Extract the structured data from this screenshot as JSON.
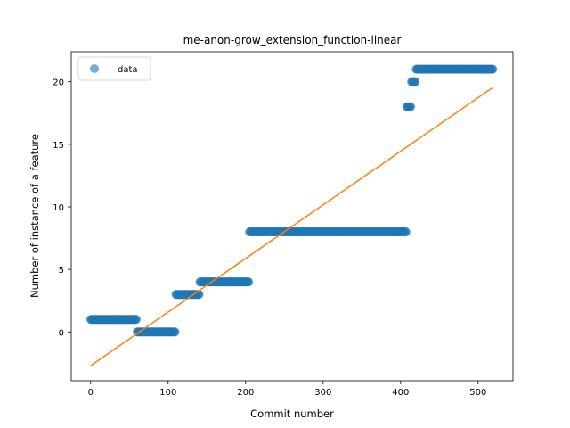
{
  "chart_data": {
    "type": "scatter",
    "title": "me-anon-grow_extension_function-linear",
    "xlabel": "Commit number",
    "ylabel": "Number of instance of a feature",
    "xlim": [
      -25,
      545
    ],
    "ylim": [
      -3.9,
      22.4
    ],
    "xticks": [
      0,
      100,
      200,
      300,
      400,
      500
    ],
    "yticks": [
      0,
      5,
      10,
      15,
      20
    ],
    "legend": {
      "position": "top-left",
      "entries": [
        "data"
      ]
    },
    "grid": false,
    "colors": {
      "data": "#1f77b4",
      "fit": "#ff7f0e"
    },
    "segments": [
      {
        "x_start": 0,
        "x_end": 60,
        "y": 1
      },
      {
        "x_start": 60,
        "x_end": 110,
        "y": 0
      },
      {
        "x_start": 110,
        "x_end": 141,
        "y": 3
      },
      {
        "x_start": 141,
        "x_end": 205,
        "y": 4
      },
      {
        "x_start": 205,
        "x_end": 408,
        "y": 8
      },
      {
        "x_start": 408,
        "x_end": 414,
        "y": 18
      },
      {
        "x_start": 414,
        "x_end": 420,
        "y": 20
      },
      {
        "x_start": 420,
        "x_end": 520,
        "y": 21
      }
    ],
    "series": [
      {
        "type": "scatter",
        "label": "data"
      },
      {
        "type": "line",
        "x": [
          0,
          518
        ],
        "y": [
          -2.7,
          19.5
        ]
      }
    ]
  }
}
